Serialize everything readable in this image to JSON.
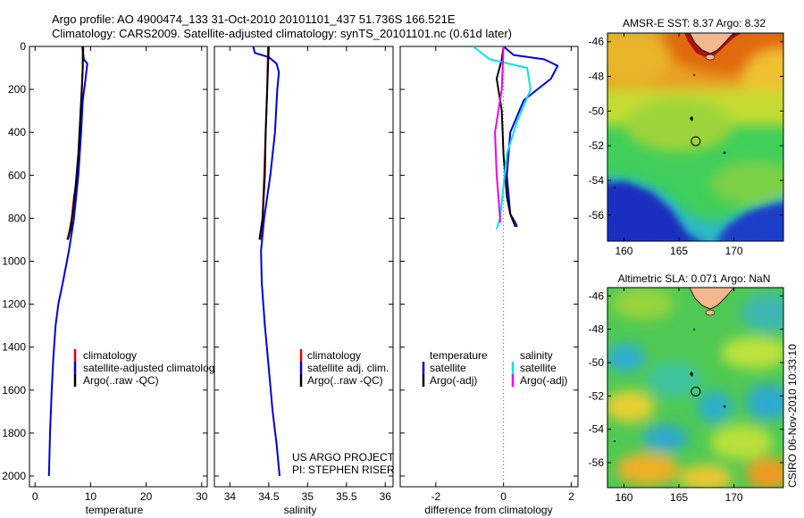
{
  "header": {
    "line1": "Argo profile: AO 4900474_133 31-Oct-2010 20101101_437 51.736S 166.521E",
    "line2": "Climatology: CARS2009. Satellite-adjusted climatology: synTS_20101101.nc (0.61d later)"
  },
  "colors": {
    "climatology": "#e00000",
    "satellite": "#0000dd",
    "argo": "#000000",
    "salinity_satellite": "#00e5e5",
    "salinity_argo": "#ee00ee",
    "deep_water": "#1a2fbf",
    "land": "#f4b88e"
  },
  "chart_data": [
    {
      "type": "line",
      "xlabel": "temperature",
      "ylabel": "",
      "xlim": [
        -1,
        31
      ],
      "ylim": [
        2050,
        0
      ],
      "xticks": [
        0,
        10,
        20,
        30
      ],
      "yticks": [
        0,
        200,
        400,
        600,
        800,
        1000,
        1200,
        1400,
        1600,
        1800,
        2000
      ],
      "legend_labels": [
        "climatology",
        "satellite-adjusted climatolog",
        "Argo(..raw -QC)"
      ],
      "series": [
        {
          "key": "climatology",
          "points": [
            [
              8.7,
              0
            ],
            [
              8.5,
              150
            ],
            [
              8.3,
              300
            ],
            [
              8.0,
              450
            ],
            [
              7.7,
              600
            ],
            [
              7.0,
              700
            ],
            [
              6.6,
              800
            ],
            [
              6.1,
              870
            ],
            [
              5.8,
              900
            ]
          ]
        },
        {
          "key": "satellite",
          "points": [
            [
              8.5,
              0
            ],
            [
              8.8,
              60
            ],
            [
              9.4,
              80
            ],
            [
              9.1,
              150
            ],
            [
              8.6,
              250
            ],
            [
              8.3,
              400
            ],
            [
              7.8,
              600
            ],
            [
              7.0,
              800
            ],
            [
              6.1,
              950
            ],
            [
              5.0,
              1100
            ],
            [
              4.2,
              1200
            ],
            [
              3.7,
              1300
            ],
            [
              3.3,
              1450
            ],
            [
              3.0,
              1600
            ],
            [
              2.7,
              1800
            ],
            [
              2.5,
              2000
            ]
          ]
        },
        {
          "key": "argo",
          "points": [
            [
              8.6,
              0
            ],
            [
              8.6,
              100
            ],
            [
              8.4,
              200
            ],
            [
              8.1,
              350
            ],
            [
              7.8,
              500
            ],
            [
              7.3,
              650
            ],
            [
              6.9,
              750
            ],
            [
              6.4,
              850
            ],
            [
              5.9,
              900
            ]
          ]
        }
      ]
    },
    {
      "type": "line",
      "xlabel": "salinity",
      "ylabel": "",
      "xlim": [
        33.8,
        36.1
      ],
      "ylim": [
        2050,
        0
      ],
      "xticks": [
        34,
        34.5,
        35,
        35.5,
        36
      ],
      "xticklabels": [
        "34",
        "34.5",
        "35",
        "35.5",
        "36"
      ],
      "legend_labels": [
        "climatology",
        "satellite adj. clim.",
        "Argo(..raw -QC)"
      ],
      "annotations": [
        "US ARGO PROJECT",
        "PI: STEPHEN RISER"
      ],
      "series": [
        {
          "key": "climatology",
          "points": [
            [
              34.49,
              0
            ],
            [
              34.48,
              200
            ],
            [
              34.46,
              400
            ],
            [
              34.44,
              600
            ],
            [
              34.42,
              800
            ],
            [
              34.4,
              900
            ]
          ]
        },
        {
          "key": "satellite",
          "points": [
            [
              34.3,
              0
            ],
            [
              34.32,
              30
            ],
            [
              34.5,
              50
            ],
            [
              34.6,
              80
            ],
            [
              34.63,
              120
            ],
            [
              34.61,
              200
            ],
            [
              34.58,
              400
            ],
            [
              34.52,
              600
            ],
            [
              34.44,
              800
            ],
            [
              34.4,
              950
            ],
            [
              34.41,
              1100
            ],
            [
              34.45,
              1300
            ],
            [
              34.5,
              1500
            ],
            [
              34.55,
              1700
            ],
            [
              34.6,
              1850
            ],
            [
              34.64,
              2000
            ]
          ]
        },
        {
          "key": "argo",
          "points": [
            [
              34.5,
              0
            ],
            [
              34.48,
              200
            ],
            [
              34.46,
              400
            ],
            [
              34.45,
              600
            ],
            [
              34.42,
              800
            ],
            [
              34.38,
              900
            ]
          ]
        }
      ]
    },
    {
      "type": "line",
      "xlabel": "difference from climatology",
      "ylabel": "",
      "xlim": [
        -3.05,
        2.2
      ],
      "ylim": [
        2050,
        0
      ],
      "xticks": [
        -2,
        0,
        2
      ],
      "legend_labels": [
        "temperature",
        "salinity",
        "satellite",
        "satellite",
        "Argo(-adj)",
        "Argo(-adj)"
      ],
      "series": [
        {
          "key": "temperature_satellite",
          "points": [
            [
              0.0,
              0
            ],
            [
              0.3,
              40
            ],
            [
              1.2,
              60
            ],
            [
              1.6,
              90
            ],
            [
              1.4,
              150
            ],
            [
              0.6,
              250
            ],
            [
              0.2,
              400
            ],
            [
              0.1,
              600
            ],
            [
              0.2,
              780
            ],
            [
              0.35,
              820
            ],
            [
              0.4,
              840
            ]
          ]
        },
        {
          "key": "temperature_argo",
          "points": [
            [
              0.0,
              0
            ],
            [
              -0.05,
              60
            ],
            [
              -0.2,
              150
            ],
            [
              -0.05,
              300
            ],
            [
              0.0,
              500
            ],
            [
              0.1,
              700
            ],
            [
              0.2,
              780
            ],
            [
              0.3,
              820
            ],
            [
              0.35,
              840
            ]
          ]
        },
        {
          "key": "salinity_satellite",
          "points": [
            [
              -0.9,
              0
            ],
            [
              -0.4,
              60
            ],
            [
              0.7,
              100
            ],
            [
              0.8,
              200
            ],
            [
              0.4,
              350
            ],
            [
              0.1,
              500
            ],
            [
              0.0,
              650
            ],
            [
              -0.1,
              800
            ],
            [
              -0.2,
              850
            ]
          ]
        },
        {
          "key": "salinity_argo",
          "points": [
            [
              0.0,
              0
            ],
            [
              -0.05,
              200
            ],
            [
              -0.25,
              400
            ],
            [
              -0.2,
              600
            ],
            [
              -0.1,
              800
            ],
            [
              -0.1,
              820
            ]
          ]
        }
      ]
    },
    {
      "type": "heatmap",
      "title": "AMSR-E SST: 8.37 Argo: 8.32",
      "xlim": [
        158.5,
        174.5
      ],
      "ylim": [
        -57.5,
        -45.5
      ],
      "xticks": [
        160,
        165,
        170
      ],
      "yticks": [
        -46,
        -48,
        -50,
        -52,
        -54,
        -56
      ],
      "argo_position": [
        166.521,
        -51.736
      ]
    },
    {
      "type": "heatmap",
      "title": "Altimetric SLA: 0.071 Argo: NaN",
      "xlim": [
        158.5,
        174.5
      ],
      "ylim": [
        -57.5,
        -45.5
      ],
      "xticks": [
        160,
        165,
        170
      ],
      "yticks": [
        -46,
        -48,
        -50,
        -52,
        -54,
        -56
      ],
      "argo_position": [
        166.521,
        -51.736
      ],
      "annotations": [
        "CSIRO 06-Nov-2010 10:33:10"
      ]
    }
  ]
}
